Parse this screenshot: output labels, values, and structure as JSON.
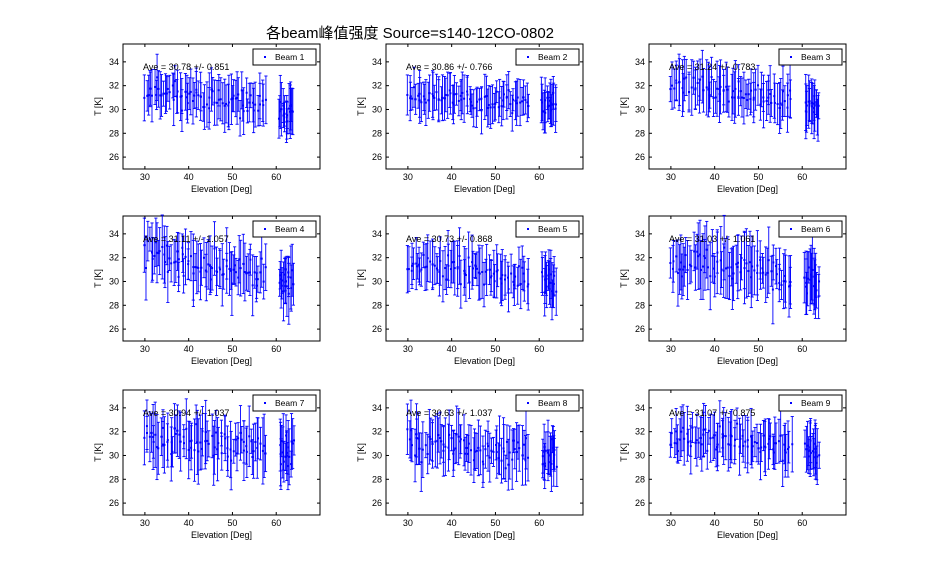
{
  "figure": {
    "title": "各beam峰值强度 Source=s140-12CO-0802"
  },
  "chart_data": [
    {
      "type": "scatter",
      "panel": "beam-1",
      "legend": "Beam 1",
      "annotation": "Ave = 30.78 +/- 0.851",
      "xlabel": "Elevation [Deg]",
      "ylabel": "T [K]",
      "xlim": [
        25,
        70
      ],
      "ylim": [
        25,
        35.5
      ],
      "xticks": [
        30,
        40,
        50,
        60
      ],
      "yticks": [
        26,
        28,
        30,
        32,
        34
      ],
      "x_range": [
        30,
        64
      ],
      "n_points": 95,
      "mean": 30.78,
      "spread": 0.851,
      "trend": -2.0,
      "errbar_range": [
        1.0,
        2.3
      ],
      "seed": 11
    },
    {
      "type": "scatter",
      "panel": "beam-2",
      "legend": "Beam 2",
      "annotation": "Ave = 30.86 +/- 0.766",
      "xlabel": "Elevation [Deg]",
      "ylabel": "T [K]",
      "xlim": [
        25,
        70
      ],
      "ylim": [
        25,
        35.5
      ],
      "xticks": [
        30,
        40,
        50,
        60
      ],
      "yticks": [
        26,
        28,
        30,
        32,
        34
      ],
      "x_range": [
        30,
        64
      ],
      "n_points": 95,
      "mean": 30.86,
      "spread": 0.766,
      "trend": -0.8,
      "errbar_range": [
        0.9,
        2.0
      ],
      "seed": 23
    },
    {
      "type": "scatter",
      "panel": "beam-3",
      "legend": "Beam 3",
      "annotation": "Ave = 31.24 +/- 0.783",
      "xlabel": "Elevation [Deg]",
      "ylabel": "T [K]",
      "xlim": [
        25,
        70
      ],
      "ylim": [
        25,
        35.5
      ],
      "xticks": [
        30,
        40,
        50,
        60
      ],
      "yticks": [
        26,
        28,
        30,
        32,
        34
      ],
      "x_range": [
        30,
        64
      ],
      "n_points": 95,
      "mean": 31.24,
      "spread": 0.783,
      "trend": -2.2,
      "errbar_range": [
        1.0,
        2.4
      ],
      "seed": 37
    },
    {
      "type": "scatter",
      "panel": "beam-4",
      "legend": "Beam 4",
      "annotation": "Ave = 31.11 +/- 1.057",
      "xlabel": "Elevation [Deg]",
      "ylabel": "T [K]",
      "xlim": [
        25,
        70
      ],
      "ylim": [
        25,
        35.5
      ],
      "xticks": [
        30,
        40,
        50,
        60
      ],
      "yticks": [
        26,
        28,
        30,
        32,
        34
      ],
      "x_range": [
        30,
        64
      ],
      "n_points": 95,
      "mean": 31.11,
      "spread": 1.057,
      "trend": -2.4,
      "errbar_range": [
        1.0,
        2.8
      ],
      "seed": 41
    },
    {
      "type": "scatter",
      "panel": "beam-5",
      "legend": "Beam 5",
      "annotation": "Ave = 30.73 +/- 0.868",
      "xlabel": "Elevation [Deg]",
      "ylabel": "T [K]",
      "xlim": [
        25,
        70
      ],
      "ylim": [
        25,
        35.5
      ],
      "xticks": [
        30,
        40,
        50,
        60
      ],
      "yticks": [
        26,
        28,
        30,
        32,
        34
      ],
      "x_range": [
        30,
        64
      ],
      "n_points": 95,
      "mean": 30.73,
      "spread": 0.868,
      "trend": -2.0,
      "errbar_range": [
        1.0,
        2.4
      ],
      "seed": 53
    },
    {
      "type": "scatter",
      "panel": "beam-6",
      "legend": "Beam 6",
      "annotation": "Ave = 31.03 +/- 1.061",
      "xlabel": "Elevation [Deg]",
      "ylabel": "T [K]",
      "xlim": [
        25,
        70
      ],
      "ylim": [
        25,
        35.5
      ],
      "xticks": [
        30,
        40,
        50,
        60
      ],
      "yticks": [
        26,
        28,
        30,
        32,
        34
      ],
      "x_range": [
        30,
        64
      ],
      "n_points": 95,
      "mean": 31.03,
      "spread": 1.061,
      "trend": -1.8,
      "errbar_range": [
        1.2,
        3.0
      ],
      "seed": 67
    },
    {
      "type": "scatter",
      "panel": "beam-7",
      "legend": "Beam 7",
      "annotation": "Ave = 30.94 +/- 1.037",
      "xlabel": "Elevation [Deg]",
      "ylabel": "T [K]",
      "xlim": [
        25,
        70
      ],
      "ylim": [
        25,
        35.5
      ],
      "xticks": [
        30,
        40,
        50,
        60
      ],
      "yticks": [
        26,
        28,
        30,
        32,
        34
      ],
      "x_range": [
        30,
        64
      ],
      "n_points": 95,
      "mean": 30.94,
      "spread": 1.037,
      "trend": -1.2,
      "errbar_range": [
        1.0,
        2.8
      ],
      "seed": 71
    },
    {
      "type": "scatter",
      "panel": "beam-8",
      "legend": "Beam 8",
      "annotation": "Ave = 30.63 +/- 1.037",
      "xlabel": "Elevation [Deg]",
      "ylabel": "T [K]",
      "xlim": [
        25,
        70
      ],
      "ylim": [
        25,
        35.5
      ],
      "xticks": [
        30,
        40,
        50,
        60
      ],
      "yticks": [
        26,
        28,
        30,
        32,
        34
      ],
      "x_range": [
        30,
        64
      ],
      "n_points": 95,
      "mean": 30.63,
      "spread": 1.037,
      "trend": -1.4,
      "errbar_range": [
        1.0,
        2.6
      ],
      "seed": 83
    },
    {
      "type": "scatter",
      "panel": "beam-9",
      "legend": "Beam 9",
      "annotation": "Ave = 31.07 +/- 0.875",
      "xlabel": "Elevation [Deg]",
      "ylabel": "T [K]",
      "xlim": [
        25,
        70
      ],
      "ylim": [
        25,
        35.5
      ],
      "xticks": [
        30,
        40,
        50,
        60
      ],
      "yticks": [
        26,
        28,
        30,
        32,
        34
      ],
      "x_range": [
        30,
        64
      ],
      "n_points": 95,
      "mean": 31.07,
      "spread": 0.875,
      "trend": -1.6,
      "errbar_range": [
        1.0,
        2.4
      ],
      "seed": 97
    }
  ],
  "style": {
    "series_color": "#0000ff",
    "axis_color": "#000000",
    "background": "#ffffff"
  }
}
